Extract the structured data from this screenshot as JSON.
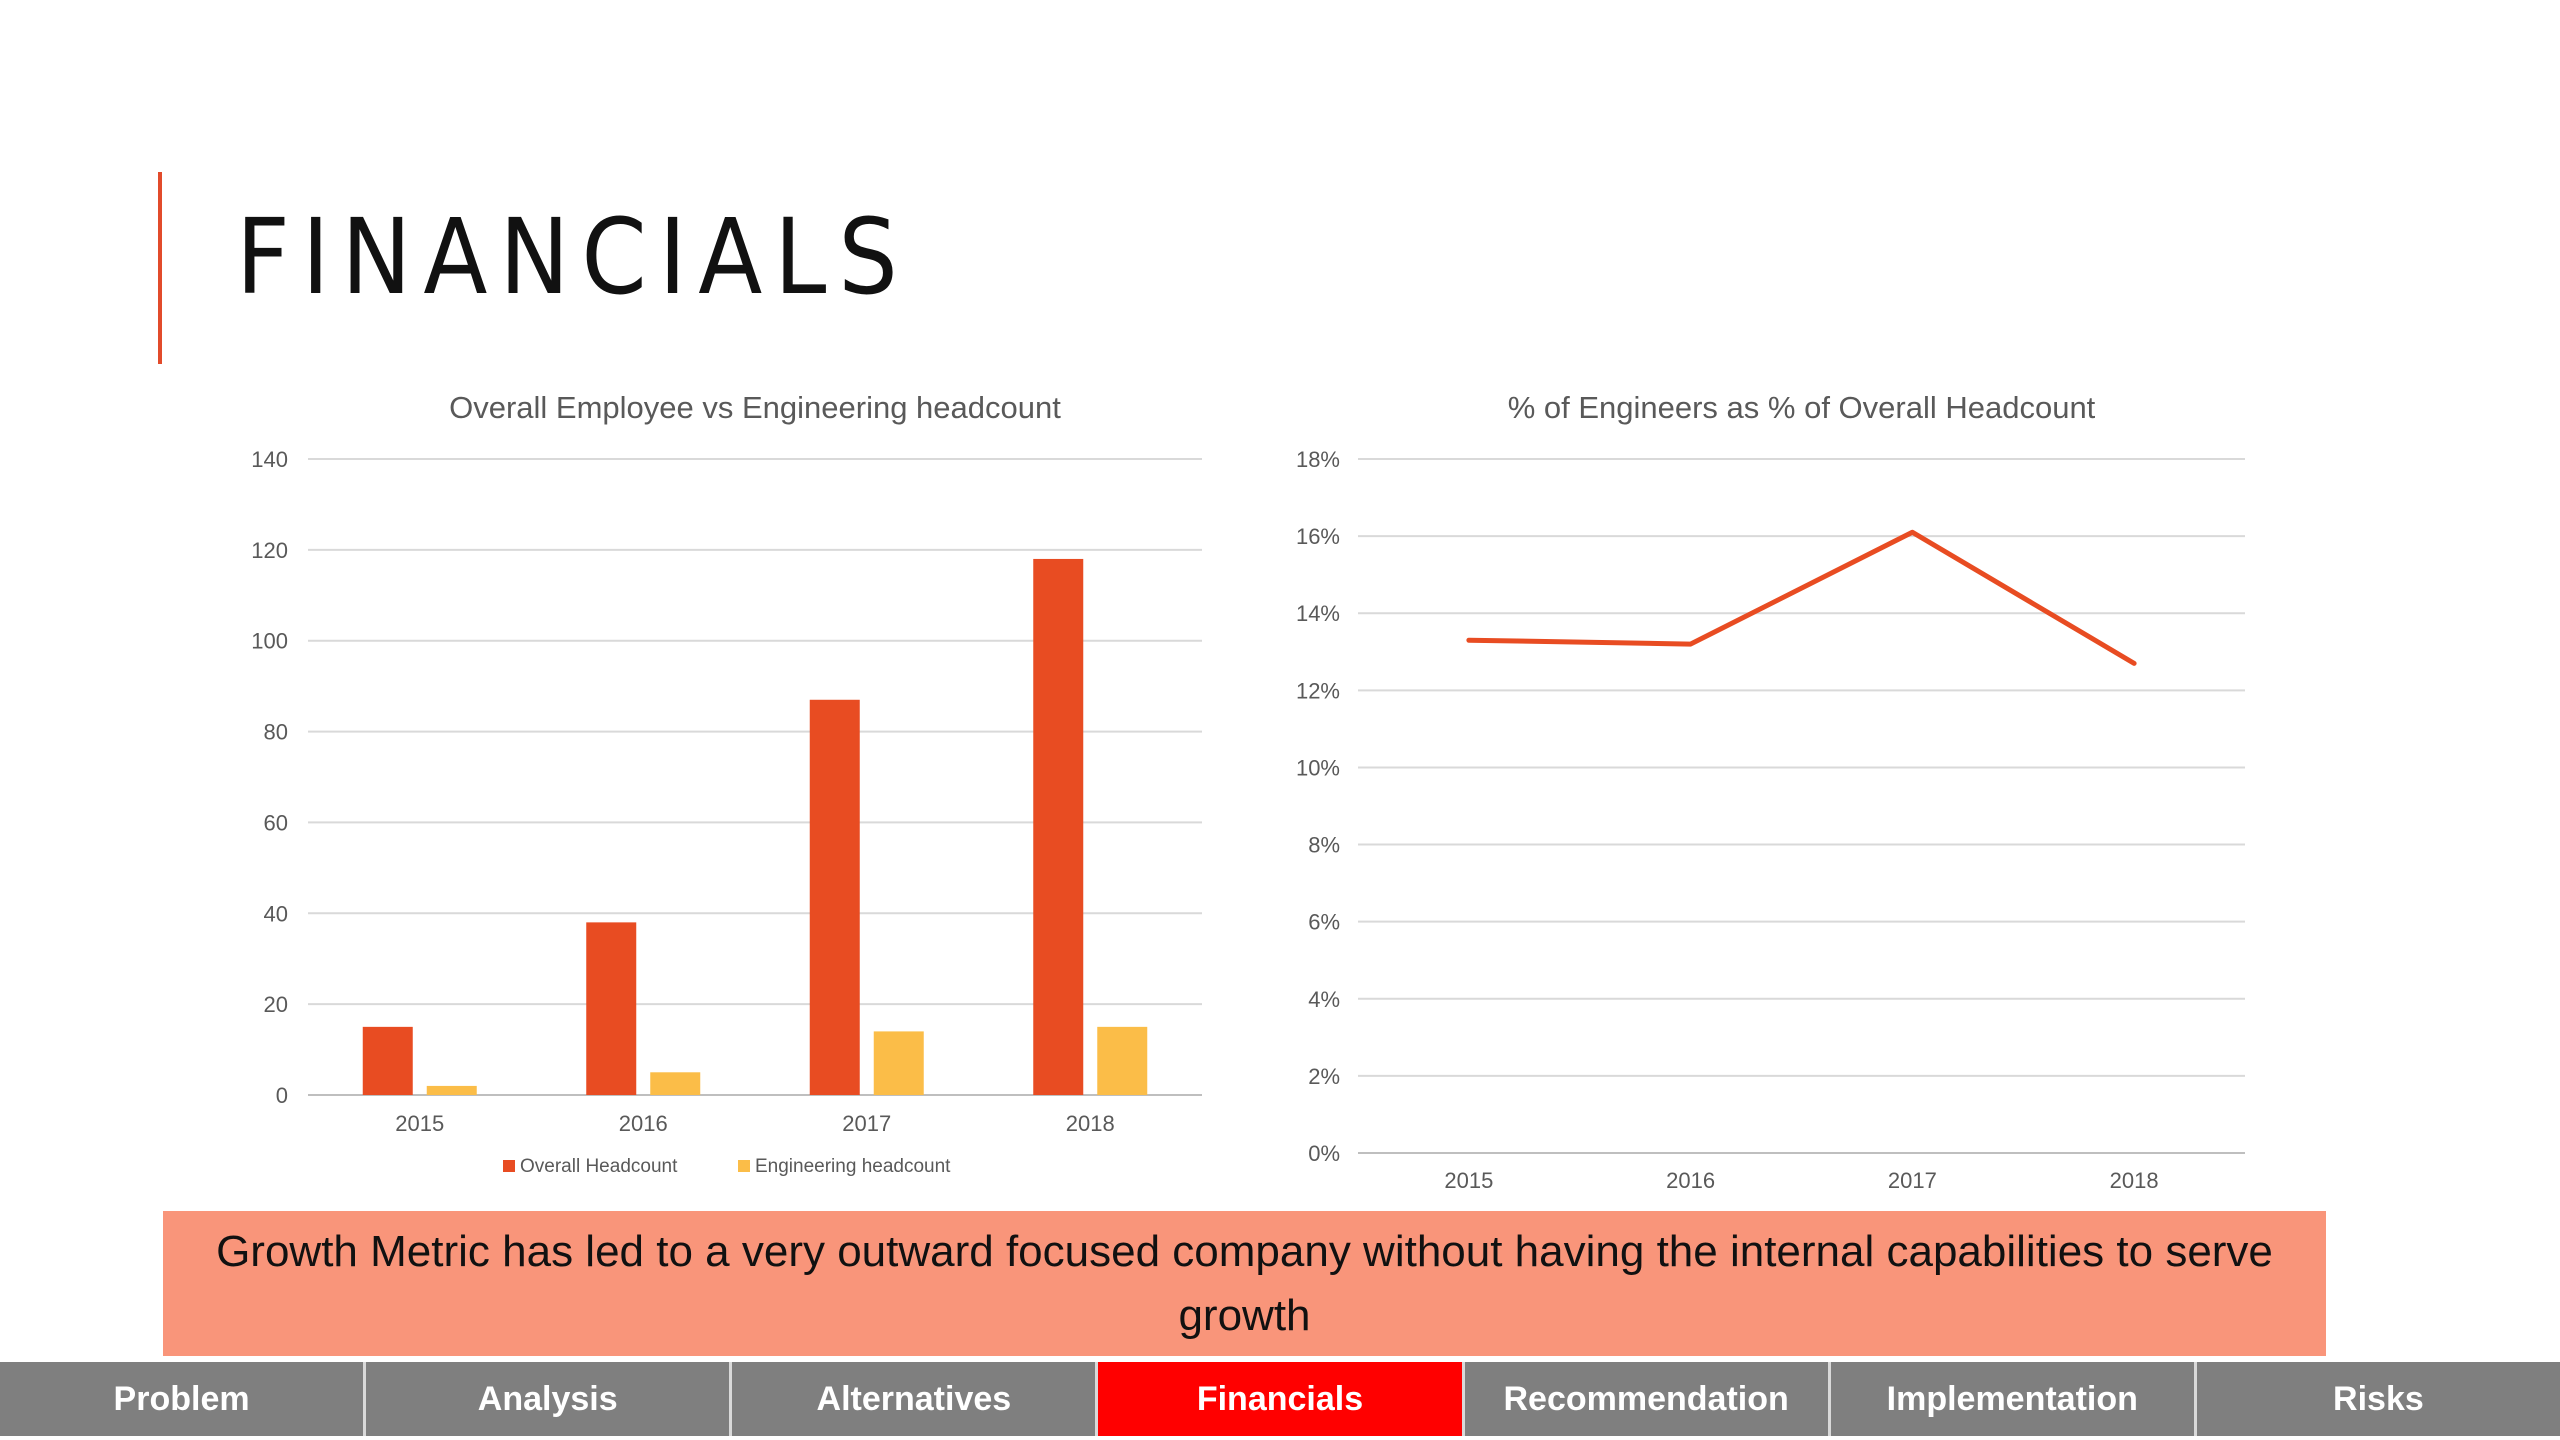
{
  "slide": {
    "title": "FINANCIALS",
    "callout": "Growth Metric has led to a very outward focused company without having the internal capabilities to serve growth",
    "nav": [
      {
        "label": "Problem",
        "active": false
      },
      {
        "label": "Analysis",
        "active": false
      },
      {
        "label": "Alternatives",
        "active": false
      },
      {
        "label": "Financials",
        "active": true
      },
      {
        "label": "Recommendation",
        "active": false
      },
      {
        "label": "Implementation",
        "active": false
      },
      {
        "label": "Risks",
        "active": false
      }
    ]
  },
  "colors": {
    "accent": "#e24b2b",
    "overall": "#e84c22",
    "engineering": "#fbbd48",
    "line": "#e84c22",
    "callout_bg": "#f9957a",
    "nav_bg": "#7f7f7f",
    "nav_active": "#ff0000"
  },
  "chart_data": [
    {
      "type": "bar",
      "title": "Overall Employee vs Engineering headcount",
      "categories": [
        "2015",
        "2016",
        "2017",
        "2018"
      ],
      "series": [
        {
          "name": "Overall Headcount",
          "values": [
            15,
            38,
            87,
            118
          ]
        },
        {
          "name": "Engineering headcount",
          "values": [
            2,
            5,
            14,
            15
          ]
        }
      ],
      "ylim": [
        0,
        140
      ],
      "yticks": [
        0,
        20,
        40,
        60,
        80,
        100,
        120,
        140
      ],
      "ytick_labels": [
        "0",
        "20",
        "40",
        "60",
        "80",
        "100",
        "120",
        "140"
      ],
      "grid": true,
      "legend": "bottom"
    },
    {
      "type": "line",
      "title": "% of Engineers as % of Overall Headcount",
      "categories": [
        "2015",
        "2016",
        "2017",
        "2018"
      ],
      "series": [
        {
          "values": [
            13.3,
            13.2,
            16.1,
            12.7
          ]
        }
      ],
      "ylim": [
        0,
        18
      ],
      "yticks": [
        0,
        2,
        4,
        6,
        8,
        10,
        12,
        14,
        16,
        18
      ],
      "ytick_labels": [
        "0%",
        "2%",
        "4%",
        "6%",
        "8%",
        "10%",
        "12%",
        "14%",
        "16%",
        "18%"
      ],
      "grid": true,
      "legend": "none"
    }
  ]
}
